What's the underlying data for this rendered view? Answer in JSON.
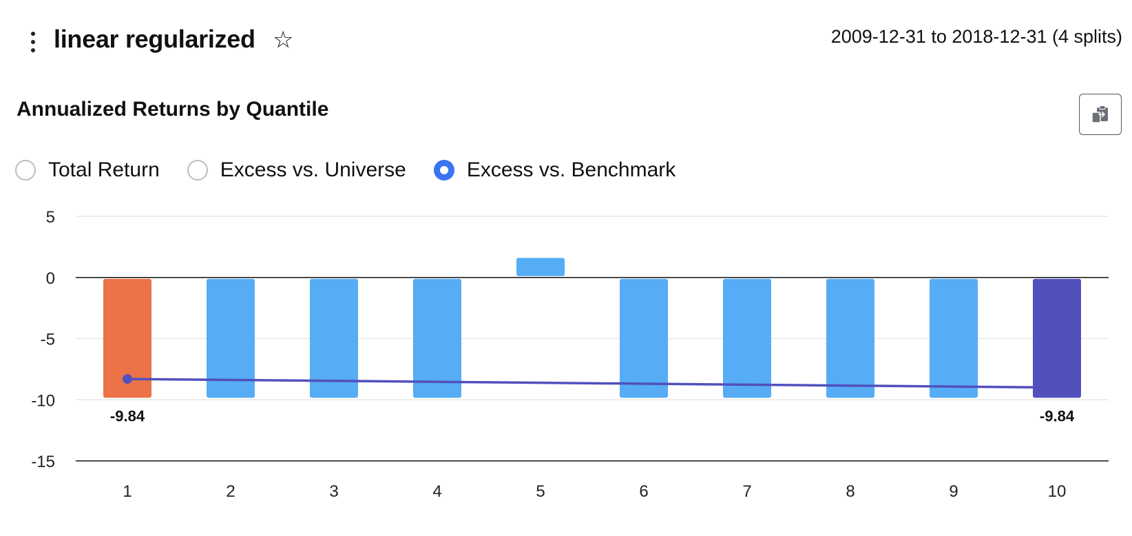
{
  "header": {
    "title": "linear regularized",
    "star_glyph": "☆",
    "date_range": "2009-12-31 to 2018-12-31 (4 splits)"
  },
  "section": {
    "title": "Annualized Returns by Quantile"
  },
  "radio_options": [
    {
      "label": "Total Return",
      "selected": false
    },
    {
      "label": "Excess vs. Universe",
      "selected": false
    },
    {
      "label": "Excess vs. Benchmark",
      "selected": true
    }
  ],
  "colors": {
    "bottom_quantile": "#ec7247",
    "middle_quantile": "#56acf5",
    "top_quantile": "#5150bd",
    "trend_line": "#5150bd",
    "radio_selected": "#3b74f0"
  },
  "chart_data": {
    "type": "bar",
    "categories": [
      "1",
      "2",
      "3",
      "4",
      "5",
      "6",
      "7",
      "8",
      "9",
      "10"
    ],
    "values": [
      -9.84,
      -9.84,
      -9.84,
      -9.84,
      1.6,
      -9.84,
      -9.84,
      -9.84,
      -9.84,
      -9.84
    ],
    "bar_labels": [
      "-9.84",
      "",
      "",
      "",
      "",
      "",
      "",
      "",
      "",
      "-9.84"
    ],
    "trend_line": {
      "start": [
        1,
        -8.3
      ],
      "end": [
        10,
        -9.0
      ]
    },
    "yticks": [
      5,
      0,
      -5,
      -10,
      -15
    ],
    "ylim": [
      -15,
      5
    ],
    "grid": true,
    "title": "",
    "xlabel": "",
    "ylabel": ""
  }
}
